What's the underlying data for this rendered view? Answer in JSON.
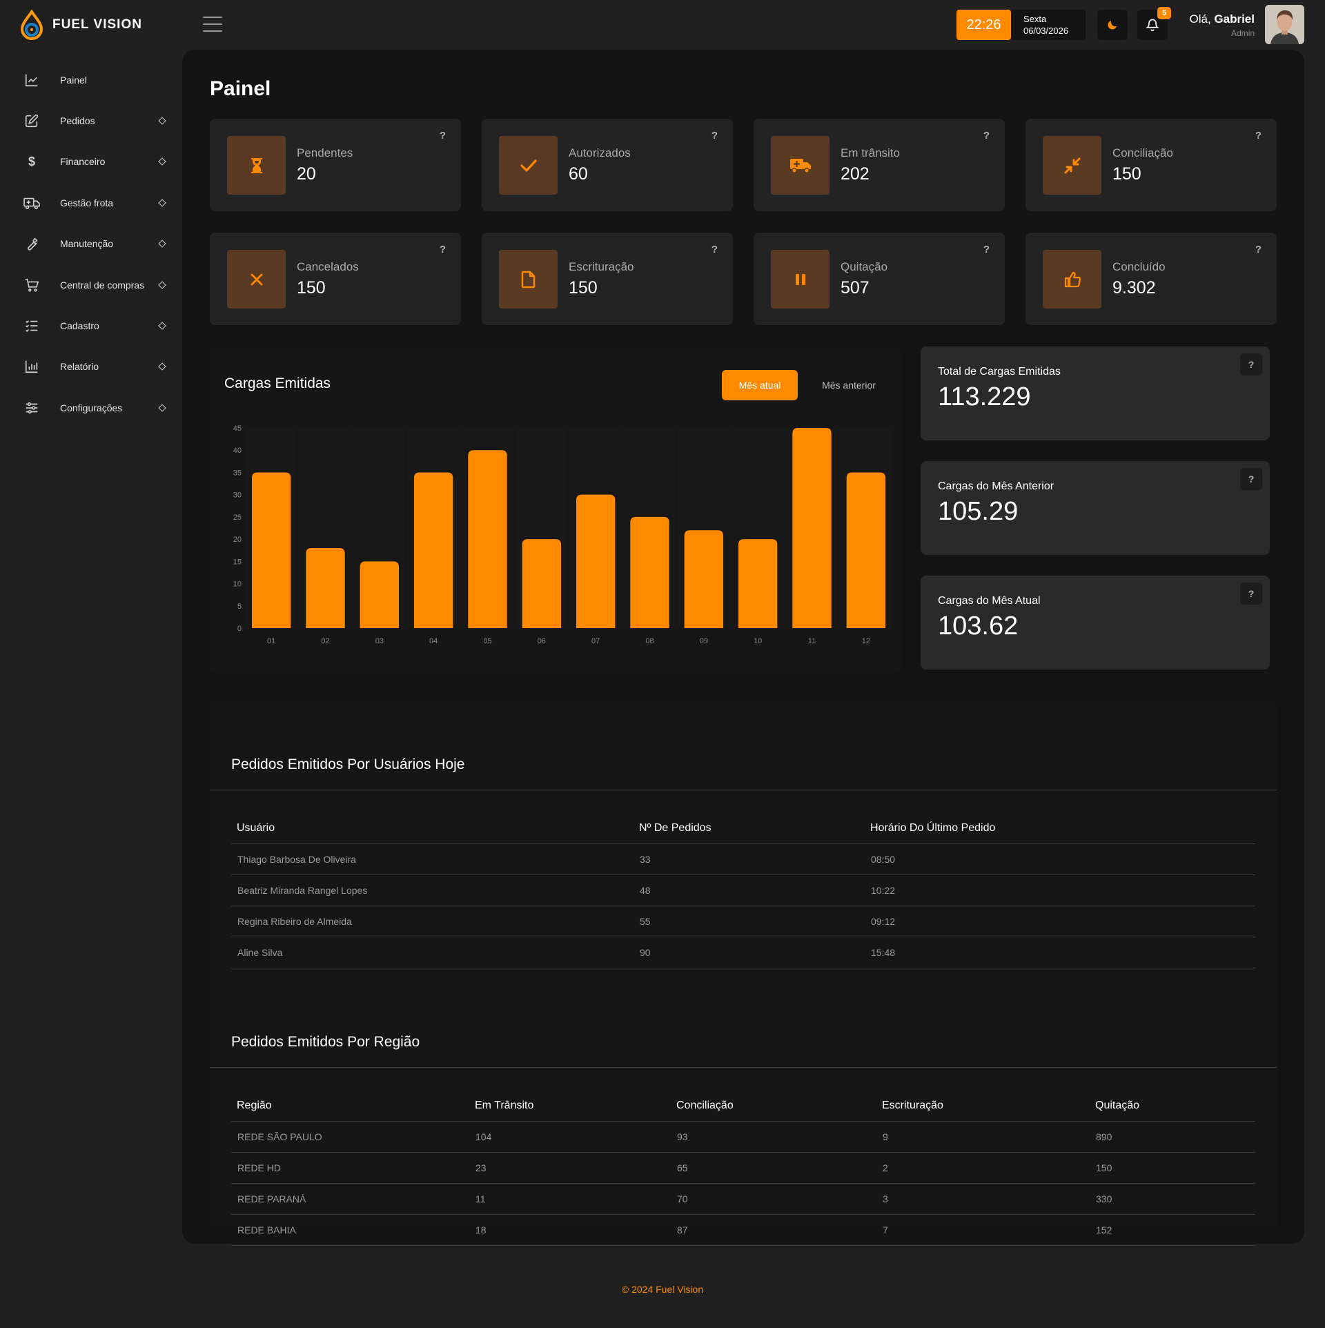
{
  "app": {
    "name": "FUEL VISION",
    "accent": "#ff8a00"
  },
  "header": {
    "time": "22:26",
    "weekday": "Sexta",
    "date": "06/03/2026",
    "notifications_count": "5",
    "greeting_prefix": "Olá,",
    "user_name": "Gabriel",
    "user_role": "Admin"
  },
  "sidebar": {
    "items": [
      {
        "label": "Painel",
        "icon": "chart-line-icon"
      },
      {
        "label": "Pedidos",
        "icon": "edit-icon"
      },
      {
        "label": "Financeiro",
        "icon": "dollar-icon"
      },
      {
        "label": "Gestão frota",
        "icon": "truck-icon"
      },
      {
        "label": "Manutenção",
        "icon": "wrench-icon"
      },
      {
        "label": "Central de compras",
        "icon": "cart-icon"
      },
      {
        "label": "Cadastro",
        "icon": "list-check-icon"
      },
      {
        "label": "Relatório",
        "icon": "bar-chart-icon"
      },
      {
        "label": "Configurações",
        "icon": "sliders-icon"
      }
    ]
  },
  "page": {
    "title": "Painel"
  },
  "status_cards": [
    {
      "label": "Pendentes",
      "value": "20",
      "icon": "hourglass-icon",
      "help": "?"
    },
    {
      "label": "Autorizados",
      "value": "60",
      "icon": "check-icon",
      "help": "?"
    },
    {
      "label": "Em trânsito",
      "value": "202",
      "icon": "truck-icon",
      "help": "?"
    },
    {
      "label": "Conciliação",
      "value": "150",
      "icon": "compress-icon",
      "help": "?"
    },
    {
      "label": "Cancelados",
      "value": "150",
      "icon": "x-icon",
      "help": "?"
    },
    {
      "label": "Escrituração",
      "value": "150",
      "icon": "file-icon",
      "help": "?"
    },
    {
      "label": "Quitação",
      "value": "507",
      "icon": "pause-icon",
      "help": "?"
    },
    {
      "label": "Concluído",
      "value": "9.302",
      "icon": "thumbs-up-icon",
      "help": "?"
    }
  ],
  "chart_section": {
    "title": "Cargas Emitidas",
    "tab_active": "Mês atual",
    "tab_inactive": "Mês anterior"
  },
  "chart_data": {
    "type": "bar",
    "categories": [
      "01",
      "02",
      "03",
      "04",
      "05",
      "06",
      "07",
      "08",
      "09",
      "10",
      "11",
      "12"
    ],
    "values": [
      35,
      18,
      15,
      35,
      40,
      20,
      30,
      25,
      22,
      20,
      45,
      35
    ],
    "ylim": [
      0,
      45
    ],
    "yticks": [
      0,
      5,
      10,
      15,
      20,
      25,
      30,
      35,
      40,
      45
    ],
    "color": "#ff8a00",
    "title": "Cargas Emitidas",
    "xlabel": "",
    "ylabel": ""
  },
  "kpis": [
    {
      "label": "Total de Cargas Emitidas",
      "value": "113.229",
      "help": "?"
    },
    {
      "label": "Cargas do Mês Anterior",
      "value": "105.29",
      "help": "?"
    },
    {
      "label": "Cargas do Mês Atual",
      "value": "103.62",
      "help": "?"
    }
  ],
  "users_table": {
    "title": "Pedidos Emitidos Por Usuários Hoje",
    "columns": [
      "Usuário",
      "Nº De Pedidos",
      "Horário Do Último Pedido"
    ],
    "rows": [
      [
        "Thiago Barbosa De Oliveira",
        "33",
        "08:50"
      ],
      [
        "Beatriz Miranda Rangel Lopes",
        "48",
        "10:22"
      ],
      [
        "Regina Ribeiro de Almeida",
        "55",
        "09:12"
      ],
      [
        "Aline Silva",
        "90",
        "15:48"
      ]
    ]
  },
  "region_table": {
    "title": "Pedidos Emitidos Por Região",
    "columns": [
      "Região",
      "Em Trânsito",
      "Conciliação",
      "Escrituração",
      "Quitação"
    ],
    "rows": [
      [
        "REDE SÃO PAULO",
        "104",
        "93",
        "9",
        "890"
      ],
      [
        "REDE HD",
        "23",
        "65",
        "2",
        "150"
      ],
      [
        "REDE PARANÁ",
        "11",
        "70",
        "3",
        "330"
      ],
      [
        "REDE BAHIA",
        "18",
        "87",
        "7",
        "152"
      ]
    ]
  },
  "footer": {
    "text": "© 2024 Fuel Vision"
  }
}
